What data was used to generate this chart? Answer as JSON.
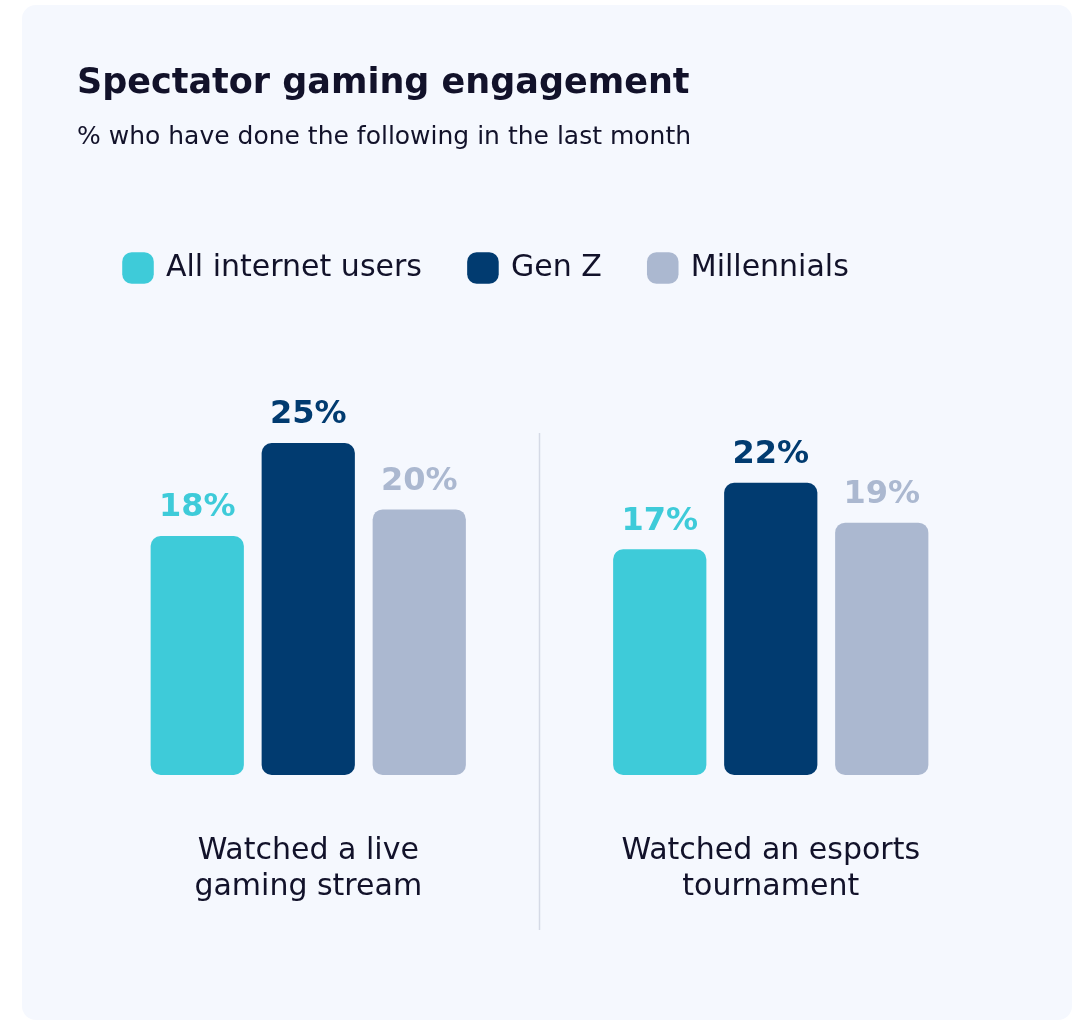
{
  "chart_data": {
    "type": "bar",
    "title": "Spectator gaming engagement",
    "subtitle": "% who have done the following in the last month",
    "categories": [
      "Watched a live gaming stream",
      "Watched an esports tournament"
    ],
    "series": [
      {
        "name": "All internet users",
        "color": "#3ecbd9",
        "values": [
          18,
          17
        ],
        "value_labels": [
          "18%",
          "17%"
        ]
      },
      {
        "name": "Gen Z",
        "color": "#013b70",
        "values": [
          25,
          22
        ],
        "value_labels": [
          "25%",
          "22%"
        ]
      },
      {
        "name": "Millennials",
        "color": "#abb8d0",
        "values": [
          20,
          19
        ],
        "value_labels": [
          "20%",
          "19%"
        ]
      }
    ],
    "tick_labels": "x",
    "legend": "top left",
    "grid": false
  }
}
